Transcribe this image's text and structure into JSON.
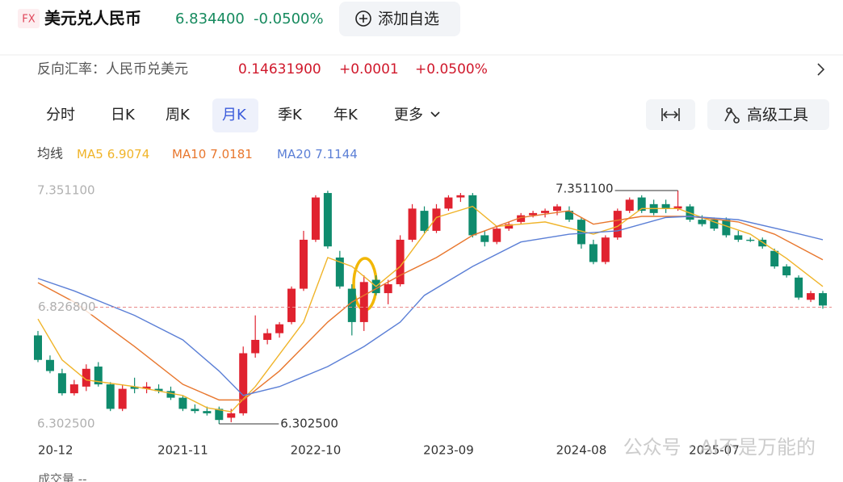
{
  "header": {
    "badge": "FX",
    "name": "美元兑人民币",
    "price": "6.834400",
    "change": "-0.0500%",
    "add_button": "添加自选"
  },
  "reverse": {
    "label": "反向汇率：人民币兑美元",
    "price": "0.14631900",
    "change": "+0.0001",
    "change_pct": "+0.0500%"
  },
  "toolbar": {
    "tabs": [
      "分时",
      "日K",
      "周K",
      "月K",
      "季K",
      "年K",
      "更多"
    ],
    "active_tab": 3,
    "tools": "高级工具"
  },
  "chart_data": {
    "type": "candlestick",
    "ma_label": "均线",
    "up_color": "#e0222f",
    "down_color": "#0f8b6d",
    "categories": [
      null,
      "20-12",
      null,
      null,
      null,
      null,
      null,
      null,
      null,
      null,
      null,
      null,
      "2021-11",
      null,
      null,
      null,
      null,
      null,
      null,
      null,
      null,
      null,
      null,
      "2022-10",
      null,
      null,
      null,
      null,
      null,
      null,
      null,
      null,
      null,
      null,
      "2023-09",
      null,
      null,
      null,
      null,
      null,
      null,
      null,
      null,
      null,
      null,
      "2024-08",
      null,
      null,
      null,
      null,
      null,
      null,
      null,
      null,
      null,
      null,
      "2025-07",
      null,
      null,
      null,
      null,
      null,
      null,
      null,
      null,
      null
    ],
    "open": [
      6.7,
      6.59,
      6.53,
      6.44,
      6.47,
      6.56,
      6.48,
      6.37,
      6.47,
      6.46,
      6.46,
      6.45,
      6.42,
      6.37,
      6.36,
      6.37,
      6.33,
      6.35,
      6.62,
      6.68,
      6.71,
      6.76,
      6.91,
      7.13,
      7.34,
      7.05,
      6.91,
      6.76,
      6.95,
      6.89,
      6.93,
      7.13,
      7.26,
      7.17,
      7.27,
      7.32,
      7.33,
      7.15,
      7.12,
      7.18,
      7.21,
      7.24,
      7.25,
      7.26,
      7.26,
      7.22,
      7.11,
      7.03,
      7.14,
      7.26,
      7.32,
      7.29,
      7.29,
      7.27,
      7.28,
      7.22,
      7.22,
      7.22,
      7.15,
      7.13,
      7.13,
      7.08,
      7.01,
      6.96,
      6.86,
      6.89
    ],
    "high": [
      6.72,
      6.61,
      6.55,
      6.5,
      6.57,
      6.58,
      6.49,
      6.48,
      6.51,
      6.49,
      6.48,
      6.47,
      6.43,
      6.39,
      6.38,
      6.38,
      6.37,
      6.65,
      6.79,
      6.73,
      6.76,
      6.92,
      7.17,
      7.33,
      7.35,
      7.08,
      6.93,
      6.97,
      6.97,
      6.95,
      7.15,
      7.29,
      7.28,
      7.29,
      7.33,
      7.34,
      7.34,
      7.17,
      7.19,
      7.21,
      7.25,
      7.26,
      7.27,
      7.29,
      7.28,
      7.23,
      7.13,
      7.15,
      7.27,
      7.32,
      7.33,
      7.31,
      7.31,
      7.3511,
      7.29,
      7.24,
      7.23,
      7.23,
      7.17,
      7.14,
      7.14,
      7.09,
      7.02,
      6.97,
      6.9,
      6.9
    ],
    "low": [
      6.58,
      6.53,
      6.43,
      6.43,
      6.45,
      6.47,
      6.36,
      6.36,
      6.44,
      6.44,
      6.44,
      6.41,
      6.36,
      6.35,
      6.34,
      6.3025,
      6.31,
      6.34,
      6.6,
      6.66,
      6.69,
      6.75,
      6.9,
      7.12,
      7.09,
      6.91,
      6.7,
      6.72,
      6.88,
      6.84,
      6.92,
      7.12,
      7.16,
      7.16,
      7.26,
      7.3,
      7.14,
      7.1,
      7.11,
      7.17,
      7.2,
      7.23,
      7.23,
      7.24,
      7.21,
      7.09,
      7.02,
      7.02,
      7.13,
      7.25,
      7.25,
      7.24,
      7.25,
      7.26,
      7.21,
      7.19,
      7.17,
      7.14,
      7.12,
      7.12,
      7.09,
      7.0,
      6.96,
      6.86,
      6.85,
      6.82
    ],
    "close": [
      6.59,
      6.54,
      6.44,
      6.48,
      6.55,
      6.48,
      6.37,
      6.46,
      6.46,
      6.47,
      6.45,
      6.42,
      6.37,
      6.36,
      6.35,
      6.32,
      6.35,
      6.62,
      6.68,
      6.71,
      6.75,
      6.91,
      7.13,
      7.32,
      7.1,
      6.92,
      6.76,
      6.94,
      6.89,
      6.93,
      7.13,
      7.27,
      7.17,
      7.27,
      7.32,
      7.33,
      7.15,
      7.12,
      7.18,
      7.2,
      7.24,
      7.25,
      7.26,
      7.28,
      7.22,
      7.11,
      7.03,
      7.14,
      7.26,
      7.31,
      7.26,
      7.25,
      7.27,
      7.28,
      7.22,
      7.2,
      7.18,
      7.15,
      7.13,
      7.125,
      7.1,
      7.01,
      6.97,
      6.87,
      6.89,
      6.8344
    ],
    "series": [
      {
        "name": "MA5",
        "last_value": 6.9074,
        "color": "#f0b429",
        "x": [
          0,
          2,
          4,
          8,
          12,
          14,
          16,
          18,
          22,
          24,
          26,
          28,
          30,
          33,
          36,
          38,
          42,
          46,
          48,
          50,
          53,
          56,
          59,
          62,
          65
        ],
        "values": [
          6.774,
          6.59,
          6.5,
          6.47,
          6.43,
          6.375,
          6.357,
          6.47,
          6.76,
          7.05,
          7.01,
          6.92,
          7.01,
          7.23,
          7.28,
          7.19,
          7.21,
          7.155,
          7.19,
          7.27,
          7.27,
          7.21,
          7.155,
          7.046,
          6.92
        ]
      },
      {
        "name": "MA10",
        "last_value": 7.0181,
        "color": "#e8772e",
        "x": [
          0,
          3,
          8,
          12,
          15,
          17,
          20,
          24,
          26,
          30,
          33,
          36,
          40,
          44,
          46,
          50,
          54,
          58,
          61,
          65
        ],
        "values": [
          6.937,
          6.85,
          6.65,
          6.48,
          6.41,
          6.41,
          6.54,
          6.76,
          6.85,
          6.97,
          7.05,
          7.15,
          7.23,
          7.26,
          7.2,
          7.235,
          7.235,
          7.21,
          7.155,
          7.04
        ]
      },
      {
        "name": "MA20",
        "last_value": 7.1144,
        "color": "#5b7fd6",
        "x": [
          0,
          3,
          8,
          12,
          15,
          17,
          20,
          24,
          27,
          30,
          32,
          36,
          40,
          44,
          48,
          52,
          54,
          58,
          62,
          65
        ],
        "values": [
          6.956,
          6.9,
          6.79,
          6.68,
          6.54,
          6.43,
          6.47,
          6.56,
          6.65,
          6.76,
          6.88,
          7.01,
          7.12,
          7.155,
          7.17,
          7.23,
          7.235,
          7.22,
          7.17,
          7.13
        ]
      }
    ],
    "ylim": [
      6.3025,
      7.3511
    ],
    "yticks": [
      {
        "value": 7.3511,
        "label": "7.351100"
      },
      {
        "value": 6.3025,
        "label": "6.302500"
      }
    ],
    "grid": false,
    "reference_line": {
      "value": 6.8268,
      "label": "6.826800"
    },
    "annotations": [
      {
        "index": 53,
        "value": 7.3511,
        "label": "7.351100",
        "side": "left"
      },
      {
        "index": 15,
        "value": 6.3025,
        "label": "6.302500",
        "side": "right"
      }
    ],
    "volume_label": "成交量 --",
    "watermark": "公众号 · AI不是万能的"
  }
}
